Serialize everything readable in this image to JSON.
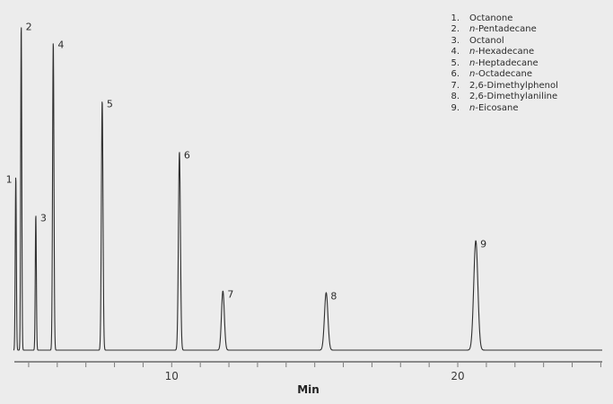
{
  "colors": {
    "background": "#ececec",
    "trace": "#303030",
    "axis": "#7c7c7c",
    "tick_label": "#3a3a3a",
    "text": "#2b2b2b"
  },
  "chart_data": {
    "type": "line",
    "title": "",
    "xlabel": "Min",
    "ylabel": "",
    "grid": false,
    "legend_position": "top-right",
    "x_axis": {
      "min": 4.5,
      "max": 25.05,
      "tick_step": 1,
      "first_tick": 5,
      "last_tick": 25,
      "labeled_ticks": [
        10,
        20
      ]
    },
    "y_axis": {
      "visible": false
    },
    "peaks": [
      {
        "label": "1",
        "compound": "Octanone",
        "italic_prefix": "",
        "name_rest": "Octanone",
        "rt_min": 4.55,
        "height_rel": 53.3,
        "sigma_min": 0.019,
        "label_side": "left"
      },
      {
        "label": "2",
        "compound": "n-Pentadecane",
        "italic_prefix": "n-",
        "name_rest": "Pentadecane",
        "rt_min": 4.74,
        "height_rel": 100,
        "sigma_min": 0.019,
        "label_side": "right"
      },
      {
        "label": "3",
        "compound": "Octanol",
        "italic_prefix": "",
        "name_rest": "Octanol",
        "rt_min": 5.25,
        "height_rel": 41.5,
        "sigma_min": 0.019,
        "label_side": "right"
      },
      {
        "label": "4",
        "compound": "n-Hexadecane",
        "italic_prefix": "n-",
        "name_rest": "Hexadecane",
        "rt_min": 5.86,
        "height_rel": 94.5,
        "sigma_min": 0.024,
        "label_side": "right"
      },
      {
        "label": "5",
        "compound": "n-Heptadecane",
        "italic_prefix": "n-",
        "name_rest": "Heptadecane",
        "rt_min": 7.57,
        "height_rel": 76.4,
        "sigma_min": 0.028,
        "label_side": "right"
      },
      {
        "label": "6",
        "compound": "n-Octadecane",
        "italic_prefix": "n-",
        "name_rest": "Octadecane",
        "rt_min": 10.27,
        "height_rel": 60.7,
        "sigma_min": 0.035,
        "label_side": "right"
      },
      {
        "label": "7",
        "compound": "2,6-Dimethylphenol",
        "italic_prefix": "",
        "name_rest": "2,6-Dimethylphenol",
        "rt_min": 11.79,
        "height_rel": 18.1,
        "sigma_min": 0.05,
        "label_side": "right"
      },
      {
        "label": "8",
        "compound": "2,6-Dimethylaniline",
        "italic_prefix": "",
        "name_rest": "2,6-Dimethylaniline",
        "rt_min": 15.4,
        "height_rel": 17.6,
        "sigma_min": 0.06,
        "label_side": "right"
      },
      {
        "label": "9",
        "compound": "n-Eicosane",
        "italic_prefix": "n-",
        "name_rest": "Eicosane",
        "rt_min": 20.63,
        "height_rel": 33.5,
        "sigma_min": 0.072,
        "label_side": "right"
      }
    ]
  }
}
